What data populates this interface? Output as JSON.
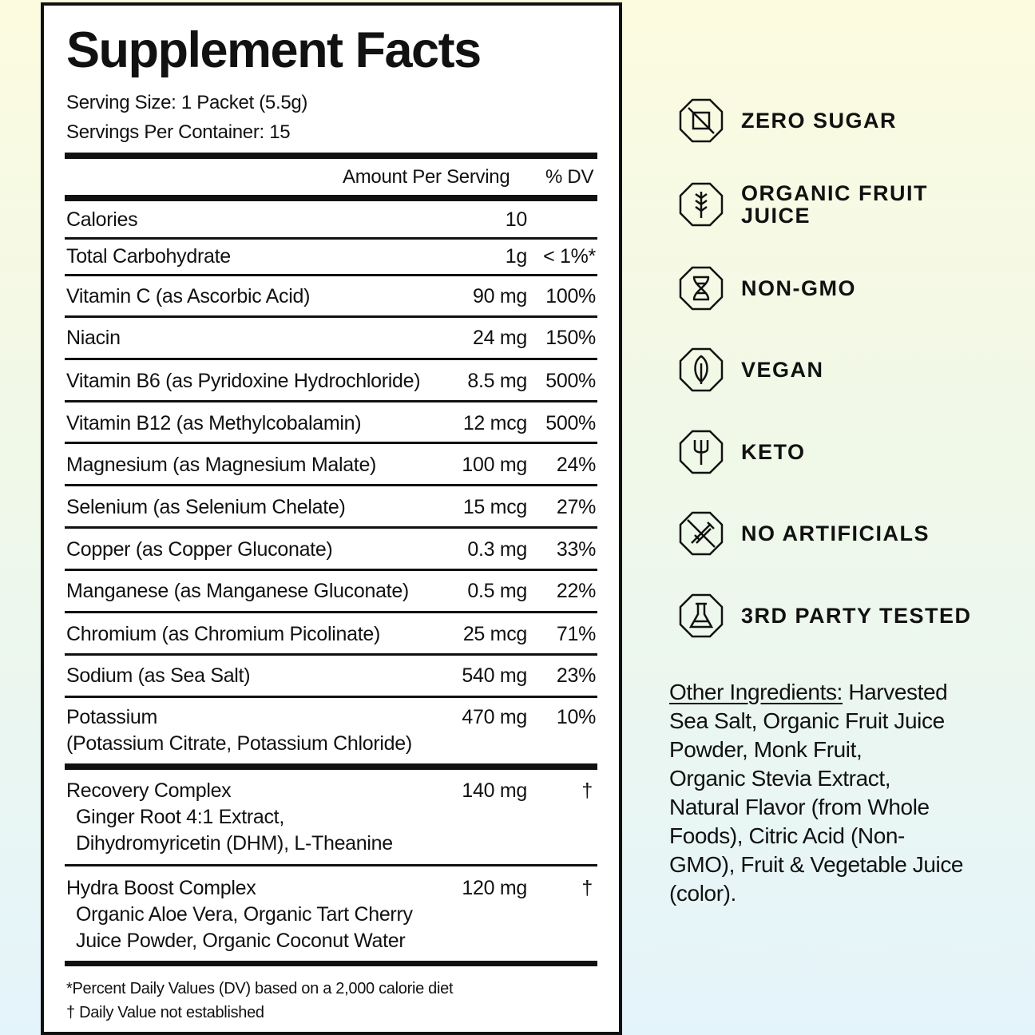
{
  "panel": {
    "title": "Supplement Facts",
    "serving_size": "Serving Size: 1 Packet (5.5g)",
    "servings_per_container": "Servings Per Container: 15",
    "header_amount": "Amount Per Serving",
    "header_dv": "% DV",
    "rows": [
      {
        "name": "Calories",
        "amount": "10",
        "dv": ""
      },
      {
        "name": "Total Carbohydrate",
        "amount": "1g",
        "dv": "< 1%*"
      },
      {
        "name": "Vitamin C (as Ascorbic Acid)",
        "amount": "90 mg",
        "dv": "100%"
      },
      {
        "name": "Niacin",
        "amount": "24 mg",
        "dv": "150%"
      },
      {
        "name": "Vitamin B6 (as Pyridoxine Hydrochloride)",
        "amount": "8.5 mg",
        "dv": "500%"
      },
      {
        "name": "Vitamin B12 (as Methylcobalamin)",
        "amount": "12 mcg",
        "dv": "500%"
      },
      {
        "name": "Magnesium (as Magnesium Malate)",
        "amount": "100 mg",
        "dv": "24%"
      },
      {
        "name": "Selenium (as Selenium Chelate)",
        "amount": "15 mcg",
        "dv": "27%"
      },
      {
        "name": "Copper (as Copper Gluconate)",
        "amount": "0.3 mg",
        "dv": "33%"
      },
      {
        "name": "Manganese (as Manganese Gluconate)",
        "amount": "0.5 mg",
        "dv": "22%"
      },
      {
        "name": "Chromium (as Chromium Picolinate)",
        "amount": "25 mcg",
        "dv": "71%"
      },
      {
        "name": "Sodium (as Sea Salt)",
        "amount": "540 mg",
        "dv": "23%"
      },
      {
        "name": "Potassium",
        "sub": "(Potassium Citrate, Potassium Chloride)",
        "amount": "470 mg",
        "dv": "10%"
      }
    ],
    "complexes": [
      {
        "name": "Recovery Complex",
        "amount": "140 mg",
        "dv": "†",
        "lines": [
          "Ginger Root 4:1 Extract,",
          "Dihydromyricetin (DHM), L-Theanine"
        ]
      },
      {
        "name": "Hydra Boost Complex",
        "amount": "120 mg",
        "dv": "†",
        "lines": [
          "Organic Aloe Vera, Organic Tart Cherry",
          "Juice Powder, Organic Coconut Water"
        ]
      }
    ],
    "footnote_dv": "*Percent Daily Values (DV) based on a 2,000 calorie diet",
    "footnote_dagger": "† Daily Value not established"
  },
  "features": [
    {
      "label": "ZERO SUGAR",
      "icon": "no-sugar-cube-icon"
    },
    {
      "label_lines": [
        "ORGANIC FRUIT",
        "JUICE"
      ],
      "icon": "wheat-icon"
    },
    {
      "label": "NON-GMO",
      "icon": "dna-helix-icon"
    },
    {
      "label": "VEGAN",
      "icon": "leaf-icon"
    },
    {
      "label": "KETO",
      "icon": "fork-icon"
    },
    {
      "label": "NO ARTIFICIALS",
      "icon": "no-syringe-icon"
    },
    {
      "label": "3RD PARTY TESTED",
      "icon": "flask-icon"
    }
  ],
  "other_ingredients": {
    "label": "Other Ingredients:",
    "lines": [
      " Harvested",
      "Sea Salt, Organic Fruit Juice",
      "Powder, Monk Fruit,",
      "Organic Stevia Extract,",
      "Natural Flavor (from Whole",
      "Foods), Citric Acid (Non-",
      "GMO), Fruit & Vegetable Juice",
      "(color)."
    ]
  }
}
